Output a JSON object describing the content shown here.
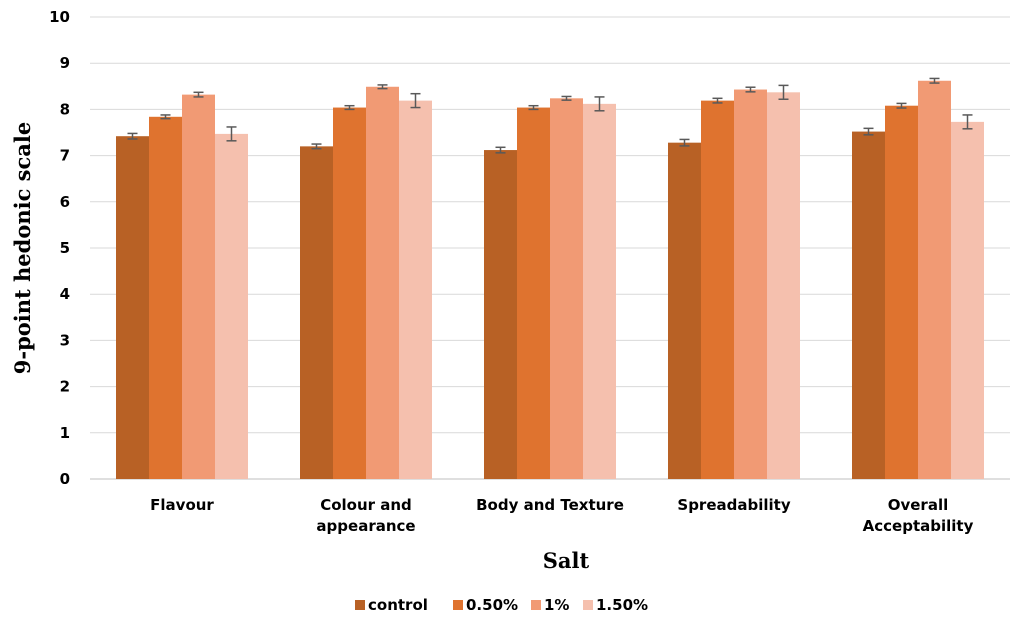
{
  "chart_data": {
    "type": "bar",
    "title": "",
    "xlabel": "Salt",
    "ylabel": "9-point hedonic scale",
    "ylim": [
      0,
      10
    ],
    "yticks": [
      "0",
      "1",
      "2",
      "3",
      "4",
      "5",
      "6",
      "7",
      "8",
      "9",
      "10"
    ],
    "categories": [
      [
        "Flavour"
      ],
      [
        "Colour and",
        "appearance"
      ],
      [
        "Body and Texture"
      ],
      [
        "Spreadability"
      ],
      [
        "Overall",
        "Acceptability"
      ]
    ],
    "series": [
      {
        "name": "control",
        "color": "#B86125",
        "values": [
          7.42,
          7.2,
          7.12,
          7.28,
          7.52
        ],
        "errors": [
          0.06,
          0.05,
          0.06,
          0.07,
          0.07
        ]
      },
      {
        "name": "0.50%",
        "color": "#DF732F",
        "values": [
          7.84,
          8.04,
          8.04,
          8.19,
          8.08
        ],
        "errors": [
          0.04,
          0.04,
          0.04,
          0.05,
          0.05
        ]
      },
      {
        "name": "1%",
        "color": "#F19A74",
        "values": [
          8.32,
          8.49,
          8.24,
          8.43,
          8.62
        ],
        "errors": [
          0.05,
          0.04,
          0.04,
          0.05,
          0.05
        ]
      },
      {
        "name": "1.50%",
        "color": "#F5C0AE",
        "values": [
          7.47,
          8.19,
          8.12,
          8.37,
          7.73
        ],
        "errors": [
          0.15,
          0.15,
          0.15,
          0.15,
          0.15
        ]
      }
    ],
    "grid": true,
    "legend_position": "bottom"
  }
}
